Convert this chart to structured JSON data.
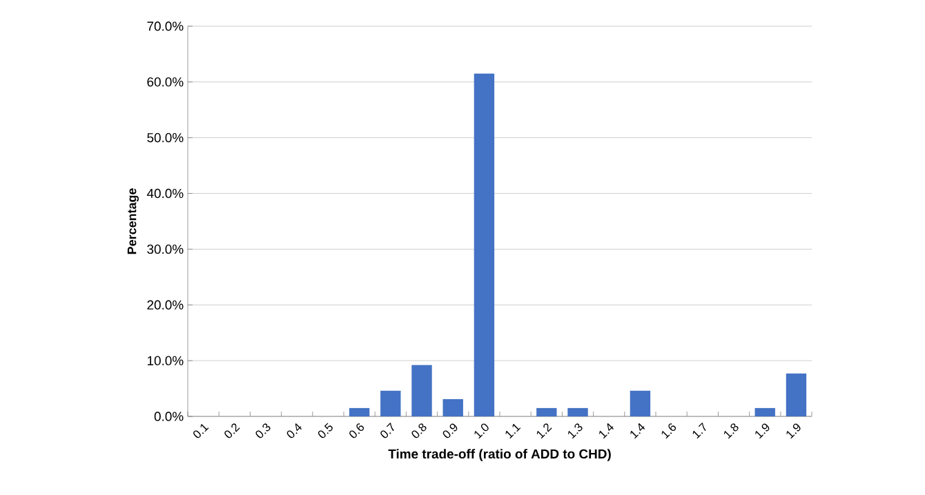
{
  "chart_data": {
    "type": "bar",
    "xlabel": "Time trade-off (ratio of ADD to CHD)",
    "ylabel": "Percentage",
    "categories": [
      "0.1",
      "0.2",
      "0.3",
      "0.4",
      "0.5",
      "0.6",
      "0.7",
      "0.8",
      "0.9",
      "1.0",
      "1.1",
      "1.2",
      "1.3",
      "1.4",
      "1.4",
      "1.6",
      "1.7",
      "1.8",
      "1.9",
      "1.9"
    ],
    "values": [
      0,
      0,
      0,
      0,
      0,
      1.5,
      4.6,
      9.2,
      3.1,
      61.5,
      0,
      1.5,
      1.5,
      0,
      4.6,
      0,
      0,
      0,
      1.5,
      7.7
    ],
    "color": "#4472c4",
    "ylim": [
      0,
      70
    ],
    "yticks": [
      {
        "value": 0,
        "label": "0.0%"
      },
      {
        "value": 10,
        "label": "10.0%"
      },
      {
        "value": 20,
        "label": "20.0%"
      },
      {
        "value": 30,
        "label": "30.0%"
      },
      {
        "value": 40,
        "label": "40.0%"
      },
      {
        "value": 50,
        "label": "50.0%"
      },
      {
        "value": 60,
        "label": "60.0%"
      },
      {
        "value": 70,
        "label": "70.0%"
      }
    ],
    "grid": "y"
  }
}
